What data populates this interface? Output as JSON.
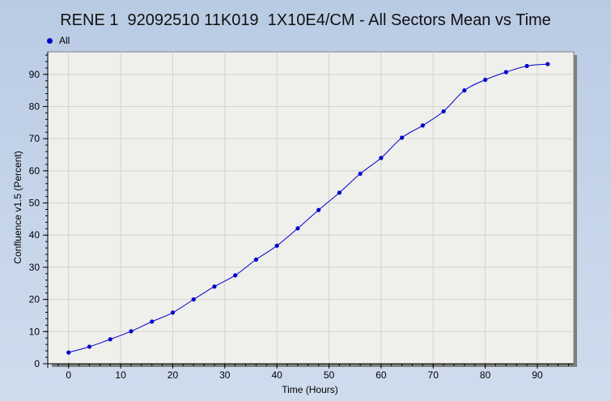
{
  "chart_data": {
    "type": "line",
    "title": "RENE 1  92092510 11K019  1X10E4/CM - All Sectors Mean vs Time",
    "xlabel": "Time (Hours)",
    "ylabel": "Confluence v1.5 (Percent)",
    "xlim": [
      -4,
      97
    ],
    "ylim": [
      0,
      97
    ],
    "xticks": [
      0,
      10,
      20,
      30,
      40,
      50,
      60,
      70,
      80,
      90
    ],
    "yticks": [
      0,
      10,
      20,
      30,
      40,
      50,
      60,
      70,
      80,
      90
    ],
    "grid": true,
    "legend_position": "top-left",
    "series": [
      {
        "name": "All",
        "color": "#0000cc",
        "x": [
          0,
          4,
          8,
          12,
          16,
          20,
          24,
          28,
          32,
          36,
          40,
          44,
          48,
          52,
          56,
          60,
          64,
          68,
          72,
          76,
          80,
          84,
          88,
          92
        ],
        "y": [
          3.5,
          5.3,
          7.6,
          10.1,
          13.1,
          15.9,
          20.0,
          24.0,
          27.5,
          32.4,
          36.7,
          42.1,
          47.8,
          53.2,
          59.1,
          64.0,
          70.3,
          74.1,
          78.5,
          85.0,
          88.3,
          90.7,
          92.6,
          93.2
        ]
      }
    ]
  }
}
